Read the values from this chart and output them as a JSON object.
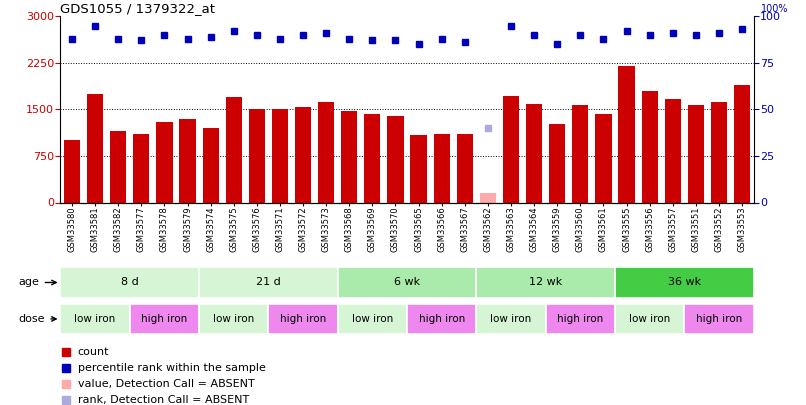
{
  "title": "GDS1055 / 1379322_at",
  "samples": [
    "GSM33580",
    "GSM33581",
    "GSM33582",
    "GSM33577",
    "GSM33578",
    "GSM33579",
    "GSM33574",
    "GSM33575",
    "GSM33576",
    "GSM33571",
    "GSM33572",
    "GSM33573",
    "GSM33568",
    "GSM33569",
    "GSM33570",
    "GSM33565",
    "GSM33566",
    "GSM33567",
    "GSM33562",
    "GSM33563",
    "GSM33564",
    "GSM33559",
    "GSM33560",
    "GSM33561",
    "GSM33555",
    "GSM33556",
    "GSM33557",
    "GSM33551",
    "GSM33552",
    "GSM33553"
  ],
  "counts": [
    1000,
    1750,
    1150,
    1100,
    1300,
    1350,
    1200,
    1700,
    1500,
    1500,
    1530,
    1620,
    1480,
    1430,
    1400,
    1080,
    1100,
    1100,
    150,
    1720,
    1580,
    1260,
    1570,
    1420,
    2200,
    1800,
    1670,
    1570,
    1620,
    1900
  ],
  "absent_count_idx": 18,
  "absent_count_value": 150,
  "ranks": [
    88,
    95,
    88,
    87,
    90,
    88,
    89,
    92,
    90,
    88,
    90,
    91,
    88,
    87,
    87,
    85,
    88,
    86,
    40,
    95,
    90,
    85,
    90,
    88,
    92,
    90,
    91,
    90,
    91,
    93
  ],
  "absent_rank_idx": 18,
  "age_groups": [
    {
      "label": "8 d",
      "start": 0,
      "end": 6,
      "color": "#d5f5d5"
    },
    {
      "label": "21 d",
      "start": 6,
      "end": 12,
      "color": "#d5f5d5"
    },
    {
      "label": "6 wk",
      "start": 12,
      "end": 18,
      "color": "#aaeaaa"
    },
    {
      "label": "12 wk",
      "start": 18,
      "end": 24,
      "color": "#aaeaaa"
    },
    {
      "label": "36 wk",
      "start": 24,
      "end": 30,
      "color": "#44cc44"
    }
  ],
  "dose_groups": [
    {
      "label": "low iron",
      "start": 0,
      "end": 3,
      "color": "#d5f5d5"
    },
    {
      "label": "high iron",
      "start": 3,
      "end": 6,
      "color": "#ee88ee"
    },
    {
      "label": "low iron",
      "start": 6,
      "end": 9,
      "color": "#d5f5d5"
    },
    {
      "label": "high iron",
      "start": 9,
      "end": 12,
      "color": "#ee88ee"
    },
    {
      "label": "low iron",
      "start": 12,
      "end": 15,
      "color": "#d5f5d5"
    },
    {
      "label": "high iron",
      "start": 15,
      "end": 18,
      "color": "#ee88ee"
    },
    {
      "label": "low iron",
      "start": 18,
      "end": 21,
      "color": "#d5f5d5"
    },
    {
      "label": "high iron",
      "start": 21,
      "end": 24,
      "color": "#ee88ee"
    },
    {
      "label": "low iron",
      "start": 24,
      "end": 27,
      "color": "#d5f5d5"
    },
    {
      "label": "high iron",
      "start": 27,
      "end": 30,
      "color": "#ee88ee"
    }
  ],
  "bar_color": "#cc0000",
  "absent_bar_color": "#ffaaaa",
  "rank_color": "#0000bb",
  "absent_rank_color": "#aaaadd",
  "ylim_left": [
    0,
    3000
  ],
  "ylim_right": [
    0,
    100
  ],
  "yticks_left": [
    0,
    750,
    1500,
    2250,
    3000
  ],
  "yticks_right": [
    0,
    25,
    50,
    75,
    100
  ],
  "grid_values": [
    750,
    1500,
    2250
  ],
  "tick_label_color_left": "#cc0000",
  "tick_label_color_right": "#0000bb",
  "bg_color": "#ffffff"
}
